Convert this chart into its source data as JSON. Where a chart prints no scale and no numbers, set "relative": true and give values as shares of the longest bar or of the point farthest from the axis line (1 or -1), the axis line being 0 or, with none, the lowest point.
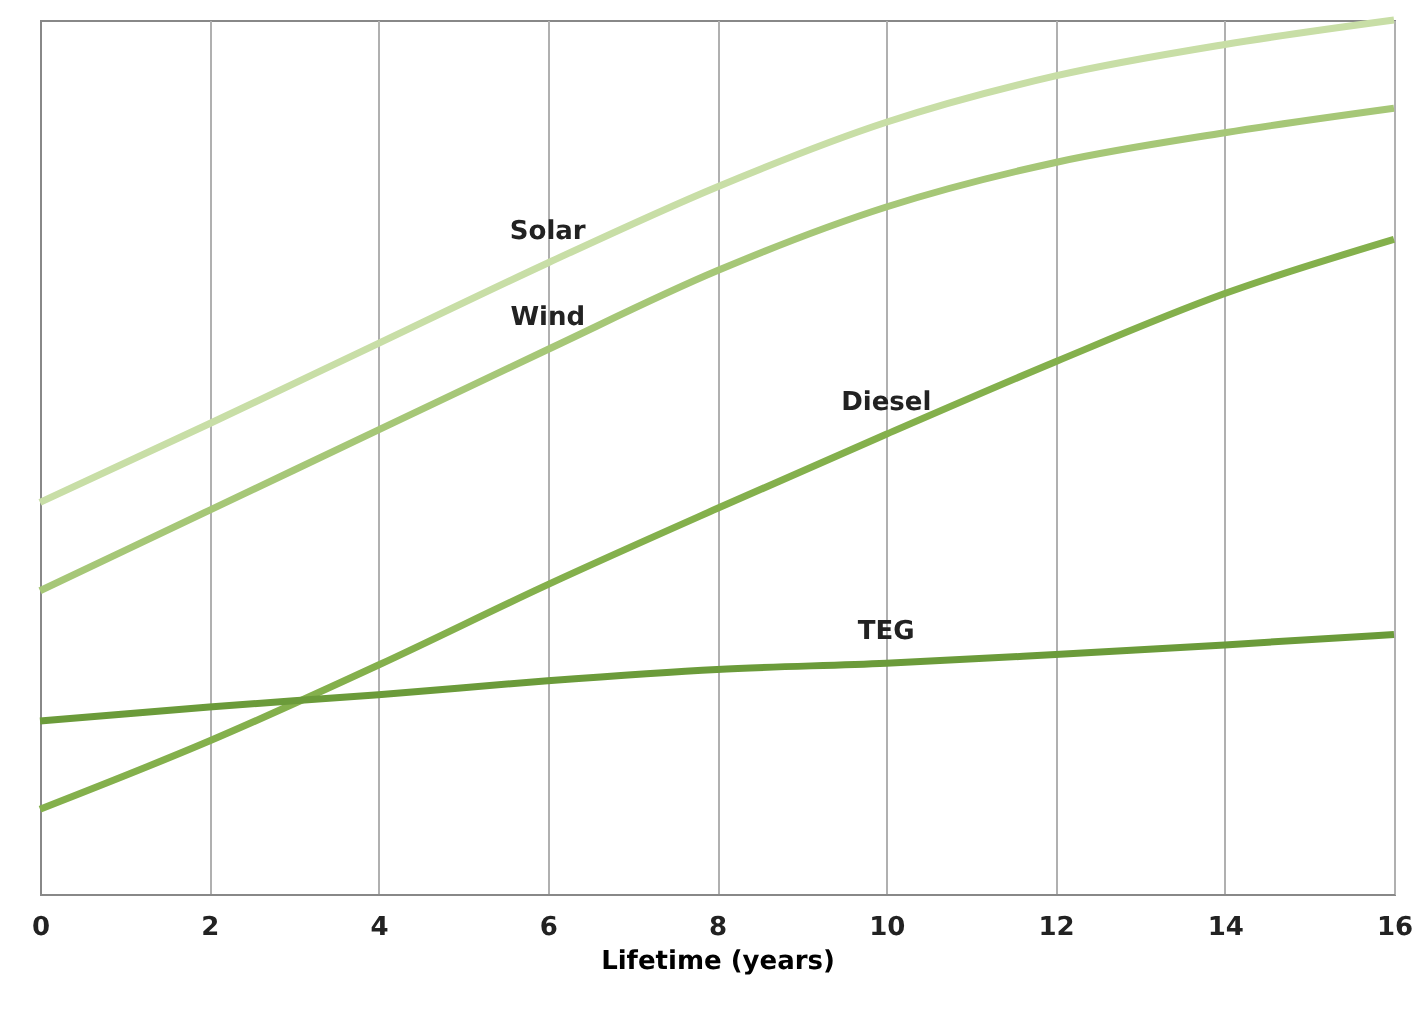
{
  "chart_data": {
    "type": "line",
    "xlabel": "Lifetime (years)",
    "relative": true,
    "x": [
      0,
      2,
      4,
      6,
      8,
      10,
      12,
      14,
      16
    ],
    "xlim": [
      0,
      16
    ],
    "xticks": [
      0,
      2,
      4,
      6,
      8,
      10,
      12,
      14,
      16
    ],
    "grid": "x",
    "line_style": "solid",
    "marker": "none",
    "series": [
      {
        "name": "Solar",
        "color": "#c8dea6",
        "values": [
          0.448,
          0.538,
          0.63,
          0.722,
          0.809,
          0.883,
          0.936,
          0.972,
          1
        ]
      },
      {
        "name": "Wind",
        "color": "#a6c777",
        "values": [
          0.347,
          0.439,
          0.531,
          0.623,
          0.713,
          0.786,
          0.837,
          0.871,
          0.899
        ]
      },
      {
        "name": "Diesel",
        "color": "#84b04c",
        "values": [
          0.097,
          0.175,
          0.262,
          0.354,
          0.441,
          0.526,
          0.609,
          0.687,
          0.749
        ]
      },
      {
        "name": "TEG",
        "color": "#6b9b3a",
        "values": [
          0.198,
          0.214,
          0.228,
          0.244,
          0.257,
          0.264,
          0.274,
          0.285,
          0.297
        ]
      }
    ]
  }
}
